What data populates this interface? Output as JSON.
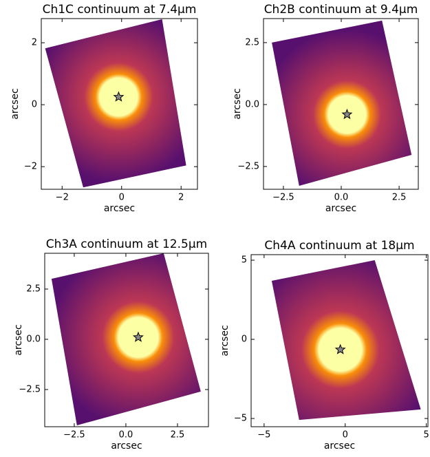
{
  "chart_data": [
    {
      "type": "image",
      "title": "Ch1C continuum at 7.4μm",
      "xlabel": "arcsec",
      "ylabel": "arcsec",
      "xlim": [
        -2.7,
        2.55
      ],
      "ylim": [
        -2.73,
        2.78
      ],
      "xticks": [
        {
          "value": -2,
          "label": "−2"
        },
        0,
        2
      ],
      "yticks": [
        {
          "value": -2,
          "label": "−2"
        },
        0,
        2
      ],
      "footprint": {
        "x": [
          1.36,
          2.17,
          -1.29,
          -2.57
        ],
        "y": [
          2.76,
          -1.96,
          -2.67,
          1.82
        ]
      },
      "star": {
        "x": -0.1,
        "y": 0.25
      },
      "colormap": [
        "#fcffa4",
        "#f98e09",
        "#bc3754",
        "#57106e"
      ]
    },
    {
      "type": "image",
      "title": "Ch2B continuum at 9.4μm",
      "xlabel": "arcsec",
      "ylabel": "arcsec",
      "xlim": [
        -3.36,
        3.33
      ],
      "ylim": [
        -3.42,
        3.47
      ],
      "xticks": [
        {
          "value": -2.5,
          "label": "−2.5"
        },
        {
          "value": 0,
          "label": "0.0"
        },
        2.5
      ],
      "yticks": [
        {
          "value": -2.5,
          "label": "−2.5"
        },
        {
          "value": 0,
          "label": "0.0"
        },
        2.5
      ],
      "footprint": {
        "x": [
          -3.0,
          1.76,
          3.04,
          -1.82
        ],
        "y": [
          2.5,
          3.39,
          -2.03,
          -3.28
        ]
      },
      "star": {
        "x": 0.25,
        "y": -0.4
      },
      "colormap": [
        "#fcffa4",
        "#f98e09",
        "#bc3754",
        "#57106e"
      ]
    },
    {
      "type": "image",
      "title": "Ch3A continuum at 12.5μm",
      "xlabel": "arcsec",
      "ylabel": "arcsec",
      "xlim": [
        -3.93,
        4.0
      ],
      "ylim": [
        -4.35,
        4.28
      ],
      "xticks": [
        {
          "value": -2.5,
          "label": "−2.5"
        },
        {
          "value": 0,
          "label": "0.0"
        },
        2.5
      ],
      "yticks": [
        {
          "value": -2.5,
          "label": "−2.5"
        },
        {
          "value": 0,
          "label": "0.0"
        },
        2.5
      ],
      "footprint": {
        "x": [
          -3.6,
          1.83,
          3.63,
          -2.37
        ],
        "y": [
          3.01,
          4.28,
          -2.6,
          -4.28
        ]
      },
      "star": {
        "x": 0.6,
        "y": 0.1
      },
      "colormap": [
        "#fcffa4",
        "#f98e09",
        "#bc3754",
        "#57106e"
      ]
    },
    {
      "type": "image",
      "title": "Ch4A continuum at 18μm",
      "xlabel": "arcsec",
      "ylabel": "arcsec",
      "xlim": [
        -5.8,
        5.1
      ],
      "ylim": [
        -5.52,
        5.35
      ],
      "xticks": [
        {
          "value": -5,
          "label": "−5"
        },
        0,
        5
      ],
      "yticks": [
        {
          "value": -5,
          "label": "−5"
        },
        0,
        5
      ],
      "footprint": {
        "x": [
          -4.53,
          1.82,
          4.66,
          -2.84
        ],
        "y": [
          3.7,
          5.0,
          -4.43,
          -5.09
        ]
      },
      "star": {
        "x": -0.3,
        "y": -0.65
      },
      "colormap": [
        "#fcffa4",
        "#f98e09",
        "#bc3754",
        "#57106e"
      ]
    }
  ]
}
